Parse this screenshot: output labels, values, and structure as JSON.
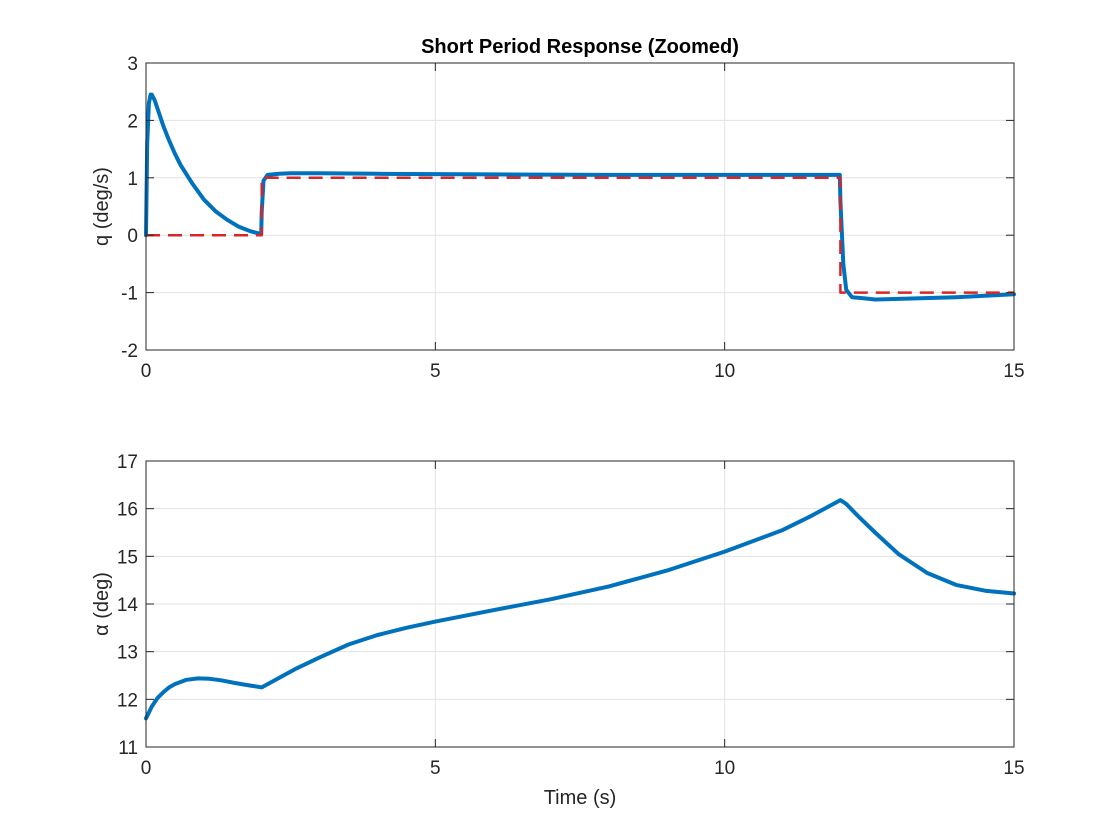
{
  "chart_data": [
    {
      "type": "line",
      "title": "Short Period Response (Zoomed)",
      "xlabel": "",
      "ylabel": "q (deg/s)",
      "xlim": [
        0,
        15
      ],
      "ylim": [
        -2,
        3
      ],
      "xticks": [
        0,
        5,
        10,
        15
      ],
      "yticks": [
        -2,
        -1,
        0,
        1,
        2,
        3
      ],
      "grid": true,
      "series": [
        {
          "color": "#0072BD",
          "style": "solid",
          "x": [
            0,
            0.02,
            0.05,
            0.08,
            0.1,
            0.15,
            0.2,
            0.3,
            0.4,
            0.5,
            0.6,
            0.8,
            1.0,
            1.2,
            1.4,
            1.6,
            1.8,
            1.99,
            2.0,
            2.03,
            2.1,
            2.3,
            2.5,
            3.0,
            4.0,
            6.0,
            8.0,
            10.0,
            11.0,
            11.99,
            12.0,
            12.05,
            12.1,
            12.2,
            12.4,
            12.6,
            13.0,
            14.0,
            15.0
          ],
          "y": [
            0,
            1.6,
            2.3,
            2.45,
            2.45,
            2.35,
            2.2,
            1.9,
            1.65,
            1.42,
            1.22,
            0.9,
            0.62,
            0.42,
            0.27,
            0.15,
            0.07,
            0.02,
            0.4,
            0.95,
            1.05,
            1.07,
            1.08,
            1.08,
            1.07,
            1.06,
            1.05,
            1.05,
            1.05,
            1.05,
            0.6,
            -0.5,
            -0.95,
            -1.08,
            -1.1,
            -1.12,
            -1.11,
            -1.08,
            -1.03
          ]
        },
        {
          "color": "#D62728",
          "style": "dashed",
          "x": [
            0,
            2,
            2,
            12,
            12,
            15
          ],
          "y": [
            0,
            0,
            1,
            1,
            -1,
            -1
          ]
        }
      ]
    },
    {
      "type": "line",
      "title": "",
      "xlabel": "Time (s)",
      "ylabel": "α (deg)",
      "xlim": [
        0,
        15
      ],
      "ylim": [
        11,
        17
      ],
      "xticks": [
        0,
        5,
        10,
        15
      ],
      "yticks": [
        11,
        12,
        13,
        14,
        15,
        16,
        17
      ],
      "grid": true,
      "series": [
        {
          "color": "#0072BD",
          "style": "solid",
          "x": [
            0,
            0.1,
            0.2,
            0.3,
            0.4,
            0.5,
            0.7,
            0.9,
            1.1,
            1.3,
            1.5,
            1.7,
            2.0,
            2.3,
            2.6,
            3.0,
            3.5,
            4.0,
            4.5,
            5.0,
            6.0,
            7.0,
            8.0,
            9.0,
            10.0,
            11.0,
            11.5,
            12.0,
            12.1,
            12.3,
            12.6,
            13.0,
            13.5,
            14.0,
            14.5,
            15.0
          ],
          "y": [
            11.6,
            11.85,
            12.03,
            12.15,
            12.25,
            12.32,
            12.41,
            12.44,
            12.43,
            12.4,
            12.35,
            12.31,
            12.25,
            12.45,
            12.65,
            12.88,
            13.15,
            13.35,
            13.5,
            13.63,
            13.87,
            14.1,
            14.37,
            14.7,
            15.1,
            15.55,
            15.85,
            16.18,
            16.1,
            15.85,
            15.5,
            15.05,
            14.65,
            14.4,
            14.28,
            14.22
          ]
        }
      ]
    }
  ]
}
